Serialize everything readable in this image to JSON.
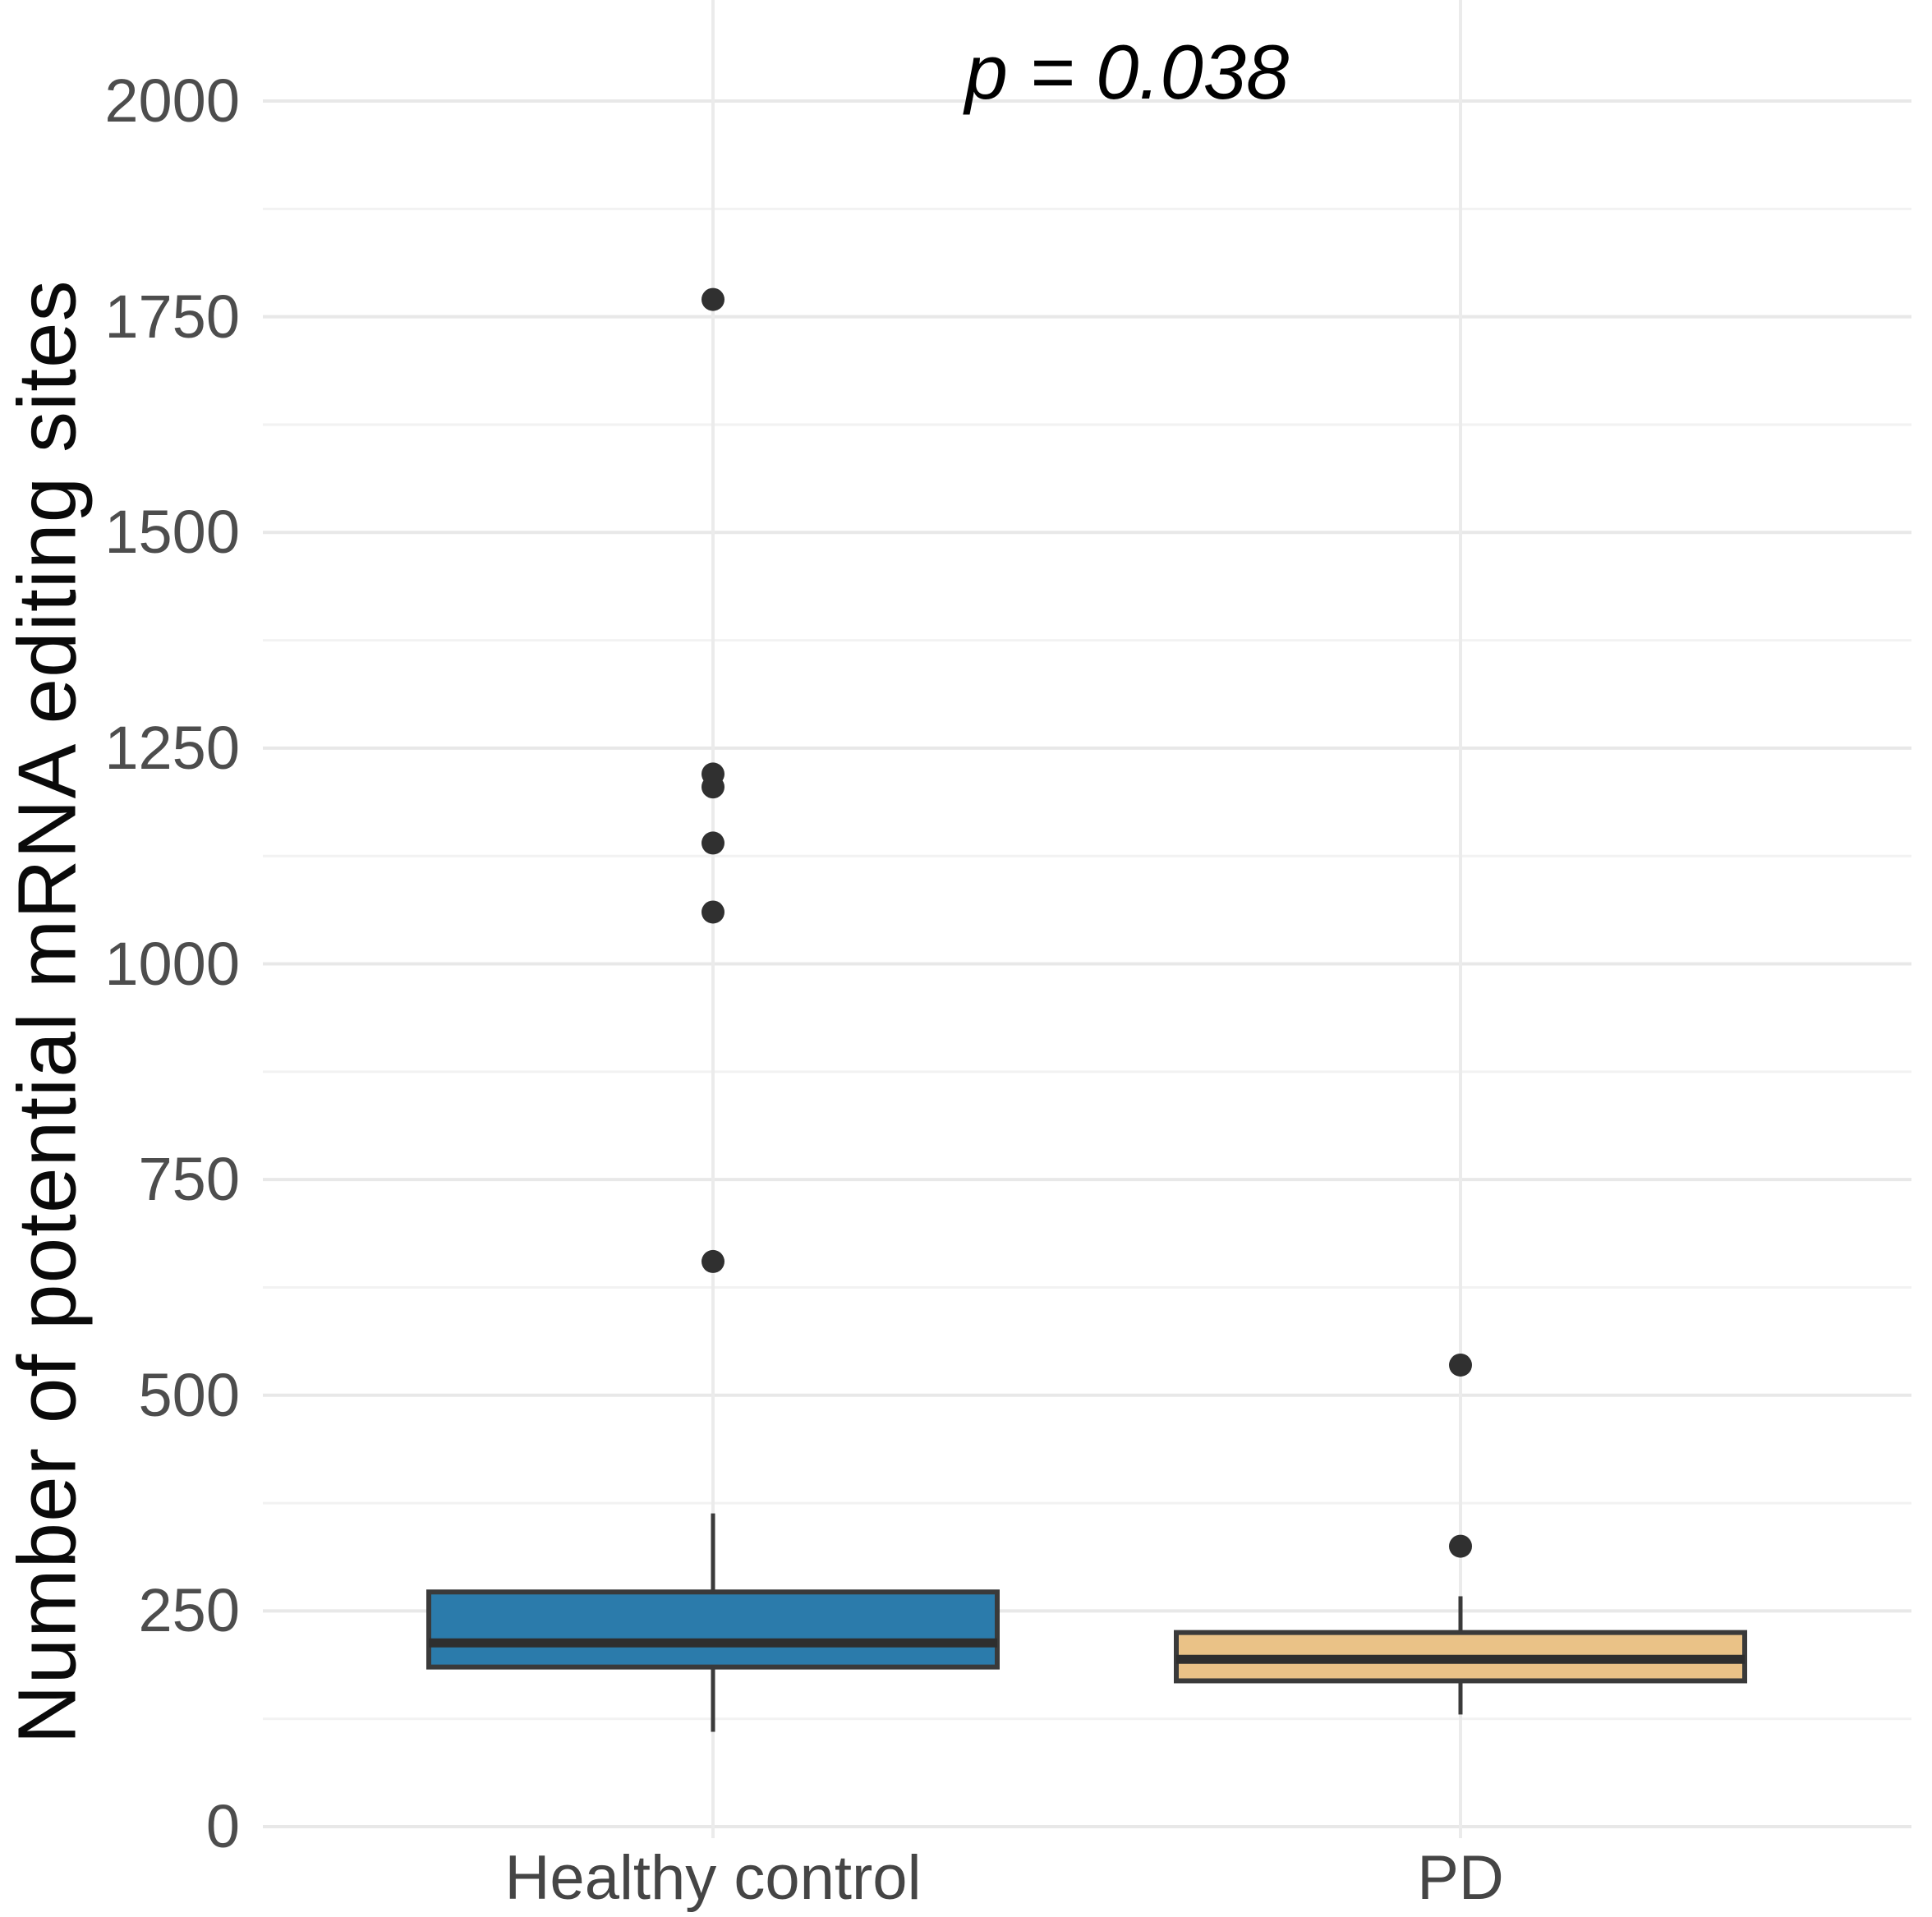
{
  "figure": {
    "kind": "boxplot-comparison",
    "background": "#ffffff"
  },
  "annotation": {
    "p_value_label": "p = 0.038"
  },
  "axes": {
    "y_title": "Number of potential mRNA editing sites",
    "y_ticks": [
      "0",
      "250",
      "500",
      "750",
      "1000",
      "1250",
      "1500",
      "1750",
      "2000"
    ],
    "x_labels": [
      "Healthy control",
      "PD"
    ]
  },
  "colors": {
    "box_fill_healthy": "#2b7bab",
    "box_fill_pd": "#eac287",
    "box_stroke": "#3a3a3a",
    "median_line": "#2e2e2e",
    "outlier_dot": "#303030",
    "grid_major": "#e8e8e8",
    "grid_minor": "#f2f2f2",
    "grid_vertical": "#ebebeb",
    "tick_text": "#4d4d4d",
    "axis_title_text": "#0a0a0a"
  },
  "chart_data": {
    "type": "box",
    "title": "",
    "xlabel": "",
    "ylabel": "Number of potential mRNA editing sites",
    "annotation": "p = 0.038",
    "categories": [
      "Healthy control",
      "PD"
    ],
    "ytick_values": [
      0,
      250,
      500,
      750,
      1000,
      1250,
      1500,
      1750,
      2000
    ],
    "minor_tick_values": [
      125,
      375,
      625,
      875,
      1125,
      1375,
      1625,
      1875
    ],
    "ylim": [
      0,
      2100
    ],
    "grid": "horizontal major+minor; vertical line at each category center",
    "legend": "none",
    "series": [
      {
        "name": "Healthy control",
        "fill": "#2b7bab",
        "whisker_low": 110,
        "q1": 185,
        "median": 213,
        "q3": 272,
        "whisker_high": 363,
        "outliers": [
          655,
          1060,
          1140,
          1205,
          1220,
          1770
        ]
      },
      {
        "name": "PD",
        "fill": "#eac287",
        "whisker_low": 130,
        "q1": 169,
        "median": 194,
        "q3": 225,
        "whisker_high": 267,
        "outliers": [
          325,
          535
        ]
      }
    ]
  }
}
